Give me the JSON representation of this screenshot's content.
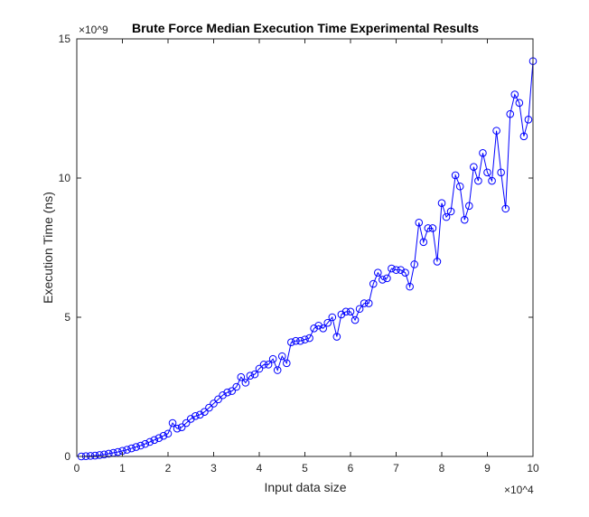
{
  "chart_data": {
    "type": "line",
    "title": "Brute Force Median Execution Time Experimental Results",
    "xlabel": "Input data size",
    "ylabel": "Execution Time (ns)",
    "x_multiplier": "×10^4",
    "y_multiplier": "×10^9",
    "xlim": [
      0,
      100000
    ],
    "ylim": [
      0,
      15000000000
    ],
    "x_ticks": [
      0,
      10000,
      20000,
      30000,
      40000,
      50000,
      60000,
      70000,
      80000,
      90000,
      100000
    ],
    "x_tick_labels": [
      "0",
      "1",
      "2",
      "3",
      "4",
      "5",
      "6",
      "7",
      "8",
      "9",
      "10"
    ],
    "y_ticks": [
      0,
      5000000000,
      10000000000,
      15000000000
    ],
    "y_tick_labels": [
      "0",
      "5",
      "10",
      "15"
    ],
    "grid": false,
    "series_color": "#0000ff",
    "marker": "circle",
    "series": [
      {
        "x": [
          1000,
          2000,
          3000,
          4000,
          5000,
          6000,
          7000,
          8000,
          9000,
          10000,
          11000,
          12000,
          13000,
          14000,
          15000,
          16000,
          17000,
          18000,
          19000,
          20000,
          21000,
          22000,
          23000,
          24000,
          25000,
          26000,
          27000,
          28000,
          29000,
          30000,
          31000,
          32000,
          33000,
          34000,
          35000,
          36000,
          37000,
          38000,
          39000,
          40000,
          41000,
          42000,
          43000,
          44000,
          45000,
          46000,
          47000,
          48000,
          49000,
          50000,
          51000,
          52000,
          53000,
          54000,
          55000,
          56000,
          57000,
          58000,
          59000,
          60000,
          61000,
          62000,
          63000,
          64000,
          65000,
          66000,
          67000,
          68000,
          69000,
          70000,
          71000,
          72000,
          73000,
          74000,
          75000,
          76000,
          77000,
          78000,
          79000,
          80000,
          81000,
          82000,
          83000,
          84000,
          85000,
          86000,
          87000,
          88000,
          89000,
          90000,
          91000,
          92000,
          93000,
          94000,
          95000,
          96000,
          97000,
          98000,
          99000,
          100000
        ],
        "y": [
          0.0,
          10000000.0,
          20000000.0,
          30000000.0,
          50000000.0,
          70000000.0,
          100000000.0,
          130000000.0,
          160000000.0,
          200000000.0,
          240000000.0,
          290000000.0,
          340000000.0,
          390000000.0,
          450000000.0,
          520000000.0,
          590000000.0,
          660000000.0,
          740000000.0,
          820000000.0,
          1200000000.0,
          1000000000.0,
          1050000000.0,
          1200000000.0,
          1350000000.0,
          1450000000.0,
          1500000000.0,
          1600000000.0,
          1750000000.0,
          1900000000.0,
          2050000000.0,
          2200000000.0,
          2300000000.0,
          2350000000.0,
          2500000000.0,
          2850000000.0,
          2650000000.0,
          2900000000.0,
          2950000000.0,
          3150000000.0,
          3300000000.0,
          3300000000.0,
          3500000000.0,
          3100000000.0,
          3600000000.0,
          3350000000.0,
          4100000000.0,
          4150000000.0,
          4150000000.0,
          4200000000.0,
          4250000000.0,
          4600000000.0,
          4700000000.0,
          4600000000.0,
          4800000000.0,
          5000000000.0,
          4300000000.0,
          5100000000.0,
          5200000000.0,
          5200000000.0,
          4900000000.0,
          5300000000.0,
          5500000000.0,
          5500000000.0,
          6200000000.0,
          6600000000.0,
          6350000000.0,
          6400000000.0,
          6750000000.0,
          6700000000.0,
          6700000000.0,
          6600000000.0,
          6100000000.0,
          6900000000.0,
          8400000000.0,
          7700000000.0,
          8200000000.0,
          8200000000.0,
          7000000000.0,
          9100000000.0,
          8600000000.0,
          8800000000.0,
          10100000000.0,
          9700000000.0,
          8500000000.0,
          9000000000.0,
          10400000000.0,
          9900000000.0,
          10900000000.0,
          10200000000.0,
          9900000000.0,
          11700000000.0,
          10200000000.0,
          8900000000.0,
          12300000000.0,
          13000000000.0,
          12700000000.0,
          11500000000.0,
          12100000000.0,
          14200000000.0
        ]
      }
    ]
  }
}
